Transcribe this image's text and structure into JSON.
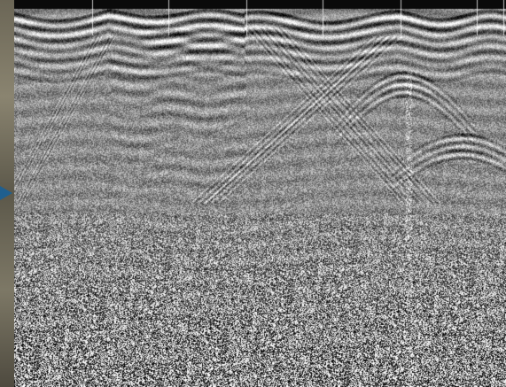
{
  "image": {
    "kind": "ground-penetrating-radar-profile",
    "colormap": "grayscale",
    "palette": {
      "background_mid": "#8c8c8c",
      "band_dark": "#141414",
      "band_light": "#f0f0f0",
      "strip_left": "#6b6656",
      "marker": "#1f5f8f"
    },
    "features": {
      "vertical_trace_markers": 7,
      "hyperbola_apexes": 2,
      "noisy_zone_starts_fraction": 0.55
    }
  }
}
